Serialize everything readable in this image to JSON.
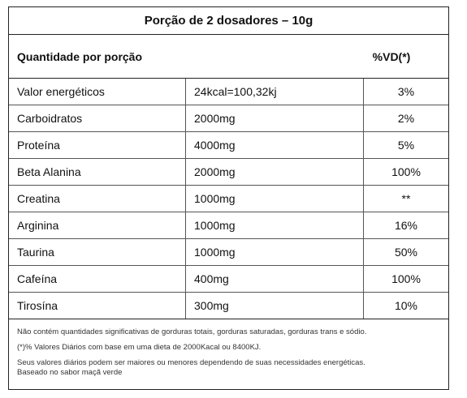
{
  "title": "Porção de 2 dosadores – 10g",
  "header": {
    "left": "Quantidade por porção",
    "right": "%VD(*)"
  },
  "rows": [
    {
      "name": "Valor energéticos",
      "amount": "24kcal=100,32kj",
      "vd": "3%"
    },
    {
      "name": "Carboidratos",
      "amount": "2000mg",
      "vd": "2%"
    },
    {
      "name": "Proteína",
      "amount": "4000mg",
      "vd": "5%"
    },
    {
      "name": "Beta Alanina",
      "amount": "2000mg",
      "vd": "100%"
    },
    {
      "name": "Creatina",
      "amount": "1000mg",
      "vd": "**"
    },
    {
      "name": "Arginina",
      "amount": "1000mg",
      "vd": "16%"
    },
    {
      "name": "Taurina",
      "amount": "1000mg",
      "vd": "50%"
    },
    {
      "name": "Cafeína",
      "amount": "400mg",
      "vd": "100%"
    },
    {
      "name": "Tirosína",
      "amount": "300mg",
      "vd": "10%"
    }
  ],
  "footer": {
    "line1": "Não contém quantidades significativas de gorduras totais, gorduras saturadas, gorduras trans e sódio.",
    "line2": "(*)% Valores Diários com base em uma dieta de 2000Kacal ou 8400KJ.",
    "line3": "Seus valores diários podem ser maiores ou menores dependendo de suas necessidades energéticas.",
    "line4": "Baseado no sabor maçã verde"
  }
}
